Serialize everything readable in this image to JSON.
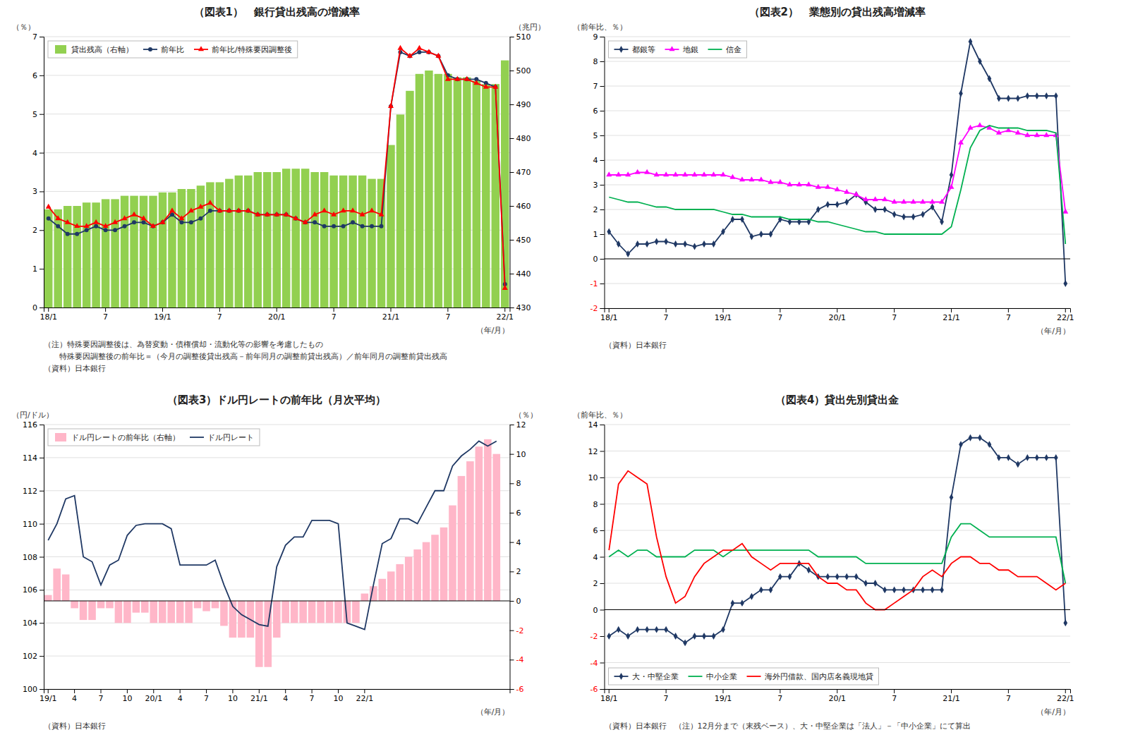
{
  "chart_data": [
    {
      "type": "line",
      "title": "（図表1）　銀行貸出残高の増減率",
      "y_label": "（％）",
      "y2_label": "（兆円）",
      "x_label": "（年/月）",
      "annotations": [
        "（注）特殊要因調整後は、為替変動・債権償却・流動化等の影響を考慮したもの",
        "　　特殊要因調整後の前年比＝（今月の調整後貸出残高－前年同月の調整前貸出残高）／前年同月の調整前貸出残高"
      ],
      "source": "（資料）日本銀行",
      "categories": [
        "18/1",
        null,
        null,
        null,
        null,
        null,
        "7",
        null,
        null,
        null,
        null,
        null,
        "19/1",
        null,
        null,
        null,
        null,
        null,
        "7",
        null,
        null,
        null,
        null,
        null,
        "20/1",
        null,
        null,
        null,
        null,
        null,
        "7",
        null,
        null,
        null,
        null,
        null,
        "21/1",
        null,
        null,
        null,
        null,
        null,
        "7",
        null,
        null,
        null,
        null,
        null,
        "22/1"
      ],
      "series": [
        {
          "name": "貸出残高（右軸）",
          "type": "bar",
          "axis": "y2",
          "color": "#92d050",
          "values": [
            459,
            459,
            460,
            460,
            461,
            461,
            462,
            462,
            463,
            463,
            463,
            463,
            464,
            464,
            465,
            465,
            466,
            467,
            467,
            468,
            469,
            469,
            470,
            470,
            470,
            471,
            471,
            471,
            470,
            470,
            469,
            469,
            469,
            469,
            468,
            468,
            478,
            487,
            494,
            499,
            500,
            499,
            499,
            498,
            498,
            497,
            496,
            496,
            503
          ]
        },
        {
          "name": "前年比",
          "type": "line",
          "color": "#1f3864",
          "marker": "circle",
          "values": [
            2.3,
            2.1,
            1.9,
            1.9,
            2.0,
            2.1,
            2.0,
            2.0,
            2.1,
            2.2,
            2.2,
            2.1,
            2.2,
            2.4,
            2.2,
            2.2,
            2.3,
            2.5,
            2.5,
            2.5,
            2.5,
            2.5,
            2.4,
            2.4,
            2.4,
            2.4,
            2.3,
            2.2,
            2.2,
            2.1,
            2.1,
            2.1,
            2.2,
            2.1,
            2.1,
            2.1,
            5.2,
            6.6,
            6.5,
            6.6,
            6.6,
            6.5,
            6.0,
            5.9,
            5.9,
            5.9,
            5.8,
            5.7,
            0.6
          ]
        },
        {
          "name": "前年比/特殊要因調整後",
          "type": "line",
          "color": "#ff0000",
          "marker": "triangle",
          "values": [
            2.6,
            2.3,
            2.2,
            2.1,
            2.1,
            2.2,
            2.1,
            2.2,
            2.3,
            2.4,
            2.3,
            2.1,
            2.2,
            2.5,
            2.3,
            2.5,
            2.6,
            2.7,
            2.5,
            2.5,
            2.5,
            2.5,
            2.4,
            2.4,
            2.4,
            2.4,
            2.3,
            2.2,
            2.4,
            2.5,
            2.4,
            2.5,
            2.5,
            2.4,
            2.5,
            2.4,
            5.2,
            6.7,
            6.5,
            6.7,
            6.6,
            6.5,
            5.9,
            5.9,
            5.9,
            5.8,
            5.7,
            5.7,
            0.5
          ]
        }
      ],
      "ylim": [
        0,
        7
      ],
      "yticks": [
        0,
        1,
        2,
        3,
        4,
        5,
        6,
        7
      ],
      "y2lim": [
        430,
        510
      ],
      "y2ticks": [
        430,
        440,
        450,
        460,
        470,
        480,
        490,
        500,
        510
      ],
      "grid": "y",
      "legend": "upper left"
    },
    {
      "type": "line",
      "title": "（図表2）　業態別の貸出残高増減率",
      "y_label": "（前年比、％）",
      "x_label": "（年/月）",
      "source": "（資料）日本銀行",
      "categories": [
        "18/1",
        null,
        null,
        null,
        null,
        null,
        "7",
        null,
        null,
        null,
        null,
        null,
        "19/1",
        null,
        null,
        null,
        null,
        null,
        "7",
        null,
        null,
        null,
        null,
        null,
        "20/1",
        null,
        null,
        null,
        null,
        null,
        "7",
        null,
        null,
        null,
        null,
        null,
        "21/1",
        null,
        null,
        null,
        null,
        null,
        "7",
        null,
        null,
        null,
        null,
        null,
        "22/1"
      ],
      "series": [
        {
          "name": "都銀等",
          "color": "#1f3864",
          "marker": "diamond",
          "values": [
            1.1,
            0.6,
            0.2,
            0.6,
            0.6,
            0.7,
            0.7,
            0.6,
            0.6,
            0.5,
            0.6,
            0.6,
            1.1,
            1.6,
            1.6,
            0.9,
            1.0,
            1.0,
            1.6,
            1.5,
            1.5,
            1.5,
            2.0,
            2.2,
            2.2,
            2.3,
            2.6,
            2.3,
            2.0,
            2.0,
            1.8,
            1.7,
            1.7,
            1.8,
            2.1,
            1.5,
            3.4,
            6.7,
            8.8,
            8.0,
            7.3,
            6.5,
            6.5,
            6.5,
            6.6,
            6.6,
            6.6,
            6.6,
            -1.0
          ]
        },
        {
          "name": "地銀",
          "color": "#ff00ff",
          "marker": "triangle",
          "values": [
            3.4,
            3.4,
            3.4,
            3.5,
            3.5,
            3.4,
            3.4,
            3.4,
            3.4,
            3.4,
            3.4,
            3.4,
            3.4,
            3.3,
            3.2,
            3.2,
            3.2,
            3.1,
            3.1,
            3.0,
            3.0,
            3.0,
            2.9,
            2.9,
            2.8,
            2.7,
            2.6,
            2.4,
            2.4,
            2.4,
            2.3,
            2.3,
            2.3,
            2.3,
            2.3,
            2.3,
            2.9,
            4.7,
            5.3,
            5.4,
            5.3,
            5.1,
            5.2,
            5.1,
            5.0,
            5.0,
            5.0,
            5.0,
            1.9
          ]
        },
        {
          "name": "信金",
          "color": "#00b050",
          "values": [
            2.5,
            2.4,
            2.3,
            2.3,
            2.2,
            2.1,
            2.1,
            2.0,
            2.0,
            2.0,
            2.0,
            2.0,
            1.9,
            1.8,
            1.8,
            1.7,
            1.7,
            1.7,
            1.7,
            1.6,
            1.6,
            1.6,
            1.5,
            1.5,
            1.4,
            1.3,
            1.2,
            1.1,
            1.1,
            1.0,
            1.0,
            1.0,
            1.0,
            1.0,
            1.0,
            1.0,
            1.3,
            2.8,
            4.5,
            5.2,
            5.4,
            5.3,
            5.3,
            5.3,
            5.2,
            5.2,
            5.2,
            5.1,
            0.6
          ]
        }
      ],
      "ylim": [
        -2,
        9
      ],
      "yticks": [
        -2,
        -1,
        0,
        1,
        2,
        3,
        4,
        5,
        6,
        7,
        8,
        9
      ],
      "grid": "y",
      "legend": "upper left"
    },
    {
      "type": "line",
      "title": "（図表3）ドル円レートの前年比（月次平均）",
      "y_label": "（円/ドル）",
      "y2_label": "（％）",
      "x_label": "（年/月）",
      "source": "（資料）日本銀行",
      "categories": [
        "19/1",
        null,
        null,
        "4",
        null,
        null,
        "7",
        null,
        null,
        "10",
        null,
        null,
        "20/1",
        null,
        null,
        "4",
        null,
        null,
        "7",
        null,
        null,
        "10",
        null,
        null,
        "21/1",
        null,
        null,
        "4",
        null,
        null,
        "7",
        null,
        null,
        "10",
        null,
        null,
        "22/1",
        null,
        null,
        null,
        null,
        null,
        null,
        null,
        null,
        null,
        null,
        null,
        null,
        null,
        null,
        null,
        null
      ],
      "series": [
        {
          "name": "ドル円レートの前年比（右軸）",
          "type": "bar",
          "axis": "y2",
          "color": "#ffb6c8",
          "values": [
            0.4,
            2.2,
            1.8,
            -0.5,
            -1.3,
            -1.3,
            -0.5,
            -0.5,
            -1.5,
            -1.5,
            -0.8,
            -0.8,
            -1.5,
            -1.5,
            -1.5,
            -1.5,
            -1.5,
            -0.5,
            -0.7,
            -0.5,
            -1.7,
            -2.5,
            -2.5,
            -2.5,
            -4.5,
            -4.5,
            -2.5,
            -1.5,
            -1.5,
            -1.5,
            -1.5,
            -1.5,
            -1.5,
            -1.5,
            -1.5,
            -1.5,
            0.5,
            1.0,
            1.5,
            2.0,
            2.5,
            3.0,
            3.5,
            4.0,
            4.5,
            5.0,
            6.5,
            8.5,
            9.5,
            10.5,
            11.0,
            10.0,
            0.0
          ]
        },
        {
          "name": "ドル円レート",
          "type": "line",
          "color": "#1f3864",
          "values": [
            109.0,
            110.0,
            111.5,
            111.7,
            108.0,
            107.7,
            106.3,
            107.5,
            107.8,
            109.3,
            109.9,
            110.0,
            110.0,
            110.0,
            109.7,
            107.5,
            107.5,
            107.5,
            107.5,
            107.8,
            106.3,
            105.0,
            104.5,
            104.2,
            103.9,
            103.8,
            107.4,
            108.7,
            109.2,
            109.2,
            110.2,
            110.2,
            110.2,
            110.0,
            104.0,
            103.8,
            103.6,
            106.3,
            108.8,
            109.1,
            110.3,
            110.3,
            110.0,
            111.0,
            112.0,
            112.0,
            113.5,
            114.1,
            114.5,
            115.0,
            114.7,
            115.0,
            null
          ]
        }
      ],
      "ylim": [
        100,
        116
      ],
      "yticks": [
        100,
        102,
        104,
        106,
        108,
        110,
        112,
        114,
        116
      ],
      "y2lim": [
        -6,
        12
      ],
      "y2ticks": [
        -6,
        -4,
        -2,
        0,
        2,
        4,
        6,
        8,
        10,
        12
      ],
      "grid": "y",
      "legend": "upper left"
    },
    {
      "type": "line",
      "title": "（図表4）貸出先別貸出金",
      "y_label": "（前年比、％）",
      "x_label": "（年/月）",
      "source": "（資料）日本銀行　（注）12月分まで（末残ベース）、大・中堅企業は「法人」－「中小企業」にて算出",
      "categories": [
        "18/1",
        null,
        null,
        null,
        null,
        null,
        "7",
        null,
        null,
        null,
        null,
        null,
        "19/1",
        null,
        null,
        null,
        null,
        null,
        "7",
        null,
        null,
        null,
        null,
        null,
        "20/1",
        null,
        null,
        null,
        null,
        null,
        "7",
        null,
        null,
        null,
        null,
        null,
        "21/1",
        null,
        null,
        null,
        null,
        null,
        "7",
        null,
        null,
        null,
        null,
        null,
        "22/1"
      ],
      "series": [
        {
          "name": "大・中堅企業",
          "color": "#1f3864",
          "marker": "diamond",
          "values": [
            -2.0,
            -1.5,
            -2.0,
            -1.5,
            -1.5,
            -1.5,
            -1.5,
            -2.0,
            -2.5,
            -2.0,
            -2.0,
            -2.0,
            -1.5,
            0.5,
            0.5,
            1.0,
            1.5,
            1.5,
            2.5,
            2.5,
            3.5,
            3.0,
            2.5,
            2.5,
            2.5,
            2.5,
            2.5,
            2.0,
            2.0,
            1.5,
            1.5,
            1.5,
            1.5,
            1.5,
            1.5,
            1.5,
            8.5,
            12.5,
            13.0,
            13.0,
            12.5,
            11.5,
            11.5,
            11.0,
            11.5,
            11.5,
            11.5,
            11.5,
            -1.0
          ]
        },
        {
          "name": "中小企業",
          "color": "#00b050",
          "values": [
            4.0,
            4.5,
            4.0,
            4.5,
            4.5,
            4.0,
            4.0,
            4.0,
            4.0,
            4.5,
            4.5,
            4.5,
            4.0,
            4.5,
            4.5,
            4.5,
            4.5,
            4.5,
            4.5,
            4.5,
            4.5,
            4.5,
            4.0,
            4.0,
            4.0,
            4.0,
            4.0,
            3.5,
            3.5,
            3.5,
            3.5,
            3.5,
            3.5,
            3.5,
            3.5,
            3.5,
            5.5,
            6.5,
            6.5,
            6.0,
            5.5,
            5.5,
            5.5,
            5.5,
            5.5,
            5.5,
            5.5,
            5.5,
            2.0
          ]
        },
        {
          "name": "海外円借款、国内店名義現地貸",
          "color": "#ff0000",
          "values": [
            4.5,
            9.5,
            10.5,
            10.0,
            9.5,
            5.5,
            2.5,
            0.5,
            1.0,
            2.5,
            3.5,
            4.0,
            4.5,
            4.5,
            5.0,
            4.0,
            3.5,
            3.0,
            3.5,
            3.5,
            3.5,
            3.5,
            2.5,
            2.0,
            2.0,
            1.5,
            1.5,
            0.5,
            0.0,
            0.0,
            0.5,
            1.0,
            1.5,
            2.5,
            3.0,
            2.5,
            3.5,
            4.0,
            4.0,
            3.5,
            3.5,
            3.0,
            3.0,
            2.5,
            2.5,
            2.5,
            2.0,
            1.5,
            2.0
          ]
        }
      ],
      "ylim": [
        -6,
        14
      ],
      "yticks": [
        -6,
        -4,
        -2,
        0,
        2,
        4,
        6,
        8,
        10,
        12,
        14
      ],
      "grid": "y",
      "legend": "lower left"
    }
  ]
}
